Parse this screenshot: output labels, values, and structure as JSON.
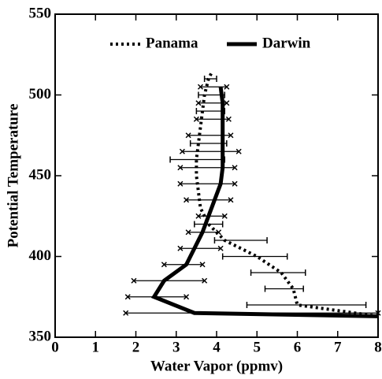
{
  "chart_data": {
    "type": "line",
    "xlabel": "Water Vapor (ppmv)",
    "ylabel": "Potential Temperature",
    "xlim": [
      0,
      8
    ],
    "xticks": [
      0,
      1,
      2,
      3,
      4,
      5,
      6,
      7,
      8
    ],
    "ylim": [
      350,
      550
    ],
    "yticks": [
      350,
      400,
      450,
      500,
      550
    ],
    "legend": "top",
    "series": [
      {
        "name": "Panama",
        "color": "#000000",
        "style": "dotted",
        "x": [
          8,
          6,
          5.9,
          5.6,
          5.0,
          4.2,
          3.8,
          3.6,
          3.55,
          3.5,
          3.5,
          3.55,
          3.6,
          3.65,
          3.7,
          3.8,
          3.9
        ],
        "values": [
          363,
          370,
          380,
          390,
          400,
          410,
          420,
          430,
          440,
          450,
          460,
          470,
          480,
          490,
          500,
          510,
          515
        ],
        "error_bars": [
          {
            "y": 370,
            "xmin": 4.75,
            "xmax": 7.7
          },
          {
            "y": 380,
            "xmin": 5.2,
            "xmax": 6.15
          },
          {
            "y": 390,
            "xmin": 4.85,
            "xmax": 6.2
          },
          {
            "y": 400,
            "xmin": 4.15,
            "xmax": 5.75
          },
          {
            "y": 410,
            "xmin": 3.95,
            "xmax": 5.25
          },
          {
            "y": 420,
            "xmin": 3.45,
            "xmax": 4.15
          },
          {
            "y": 460,
            "xmin": 2.85,
            "xmax": 4.2
          },
          {
            "y": 470,
            "xmin": 3.35,
            "xmax": 4.25
          },
          {
            "y": 490,
            "xmin": 3.5,
            "xmax": 4.2
          },
          {
            "y": 500,
            "xmin": 3.55,
            "xmax": 4.2
          },
          {
            "y": 510,
            "xmin": 3.7,
            "xmax": 4.0
          }
        ]
      },
      {
        "name": "Darwin",
        "color": "#000000",
        "style": "solid",
        "x": [
          8,
          3.45,
          2.45,
          2.7,
          3.25,
          3.45,
          3.65,
          3.8,
          3.95,
          4.1,
          4.15,
          4.15,
          4.15,
          4.15,
          4.15,
          4.1
        ],
        "values": [
          363,
          365,
          375,
          385,
          395,
          405,
          415,
          425,
          435,
          445,
          455,
          465,
          475,
          485,
          495,
          505
        ],
        "error_bars": [
          {
            "y": 365,
            "xmin": 1.75,
            "xmax": 8
          },
          {
            "y": 375,
            "xmin": 1.8,
            "xmax": 3.25
          },
          {
            "y": 385,
            "xmin": 1.95,
            "xmax": 3.7
          },
          {
            "y": 395,
            "xmin": 2.7,
            "xmax": 3.65
          },
          {
            "y": 405,
            "xmin": 3.1,
            "xmax": 4.1
          },
          {
            "y": 415,
            "xmin": 3.3,
            "xmax": 4.05
          },
          {
            "y": 425,
            "xmin": 3.55,
            "xmax": 4.2
          },
          {
            "y": 435,
            "xmin": 3.25,
            "xmax": 4.35
          },
          {
            "y": 445,
            "xmin": 3.1,
            "xmax": 4.45
          },
          {
            "y": 455,
            "xmin": 3.1,
            "xmax": 4.45
          },
          {
            "y": 465,
            "xmin": 3.15,
            "xmax": 4.55
          },
          {
            "y": 475,
            "xmin": 3.3,
            "xmax": 4.35
          },
          {
            "y": 485,
            "xmin": 3.5,
            "xmax": 4.3
          },
          {
            "y": 495,
            "xmin": 3.55,
            "xmax": 4.25
          },
          {
            "y": 505,
            "xmin": 3.6,
            "xmax": 4.25
          }
        ]
      }
    ]
  }
}
